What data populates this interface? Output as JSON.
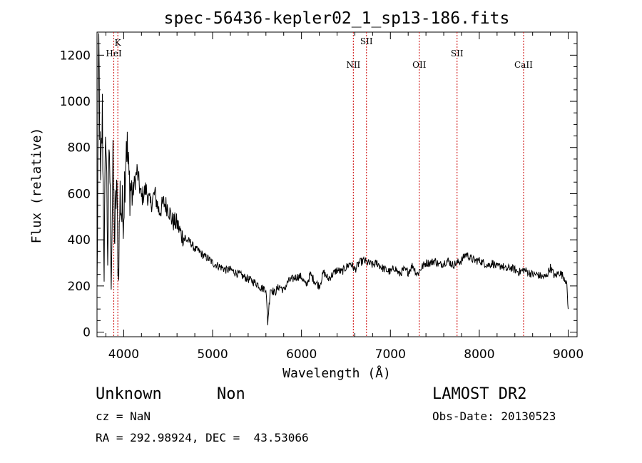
{
  "chart_data": {
    "type": "line",
    "title": "spec-56436-kepler02_1_sp13-186.fits",
    "xlabel": "Wavelength (Å)",
    "ylabel": "Flux (relative)",
    "xlim": [
      3700,
      9100
    ],
    "ylim": [
      -20,
      1300
    ],
    "x_ticks": [
      "4000",
      "5000",
      "6000",
      "7000",
      "8000",
      "9000"
    ],
    "y_ticks": [
      "0",
      "200",
      "400",
      "600",
      "800",
      "1000",
      "1200"
    ],
    "line_color": "#000000",
    "marker_color": "#cc0000",
    "grid": false,
    "series": [
      {
        "x": [
          3700,
          3720,
          3740,
          3760,
          3780,
          3800,
          3820,
          3840,
          3860,
          3880,
          3900,
          3920,
          3940,
          3960,
          3980,
          4000,
          4030,
          4060,
          4100,
          4150,
          4200,
          4250,
          4300,
          4350,
          4400,
          4450,
          4500,
          4550,
          4600,
          4650,
          4700,
          4750,
          4800,
          4850,
          4900,
          4950,
          5000,
          5050,
          5100,
          5150,
          5200,
          5250,
          5300,
          5350,
          5400,
          5450,
          5500,
          5550,
          5600,
          5620,
          5650,
          5700,
          5750,
          5800,
          5850,
          5900,
          5950,
          6000,
          6050,
          6100,
          6150,
          6200,
          6250,
          6300,
          6350,
          6400,
          6450,
          6500,
          6550,
          6600,
          6650,
          6700,
          6750,
          6800,
          6850,
          6900,
          6950,
          7000,
          7050,
          7100,
          7150,
          7200,
          7250,
          7300,
          7350,
          7400,
          7450,
          7500,
          7550,
          7600,
          7650,
          7700,
          7750,
          7800,
          7850,
          7900,
          7950,
          8000,
          8050,
          8100,
          8150,
          8200,
          8250,
          8300,
          8350,
          8400,
          8450,
          8500,
          8550,
          8600,
          8650,
          8700,
          8750,
          8800,
          8850,
          8900,
          8950,
          8980,
          9000
        ],
        "y": [
          150,
          1250,
          600,
          950,
          300,
          900,
          350,
          800,
          280,
          700,
          400,
          650,
          250,
          600,
          500,
          550,
          850,
          650,
          600,
          700,
          580,
          620,
          550,
          600,
          520,
          560,
          540,
          480,
          470,
          420,
          400,
          390,
          360,
          350,
          330,
          320,
          300,
          290,
          280,
          270,
          270,
          260,
          250,
          240,
          230,
          220,
          210,
          190,
          190,
          40,
          190,
          170,
          200,
          180,
          220,
          230,
          240,
          240,
          200,
          250,
          220,
          200,
          260,
          230,
          250,
          270,
          260,
          280,
          300,
          270,
          300,
          310,
          300,
          290,
          300,
          280,
          270,
          260,
          280,
          250,
          270,
          260,
          290,
          250,
          280,
          300,
          300,
          310,
          290,
          300,
          310,
          290,
          300,
          310,
          340,
          320,
          310,
          310,
          300,
          290,
          300,
          280,
          290,
          270,
          280,
          270,
          260,
          270,
          260,
          250,
          250,
          240,
          240,
          280,
          240,
          260,
          240,
          220,
          100
        ]
      }
    ],
    "lines": [
      {
        "name": "K",
        "x": 3934
      },
      {
        "name": "HeI",
        "x": 3889
      },
      {
        "name": "NII",
        "x": 6583
      },
      {
        "name": "SII",
        "x": 6731
      },
      {
        "name": "OII",
        "x": 7325
      },
      {
        "name": "SII",
        "x": 7750
      },
      {
        "name": "CaII",
        "x": 8498
      }
    ]
  },
  "footer": {
    "class_label": "Unknown",
    "subclass_label": "Non",
    "cz_label": "cz = NaN",
    "coords_label": "RA = 292.98924, DEC =  43.53066",
    "survey_label": "LAMOST DR2",
    "obs_date_label": "Obs-Date: 20130523"
  }
}
